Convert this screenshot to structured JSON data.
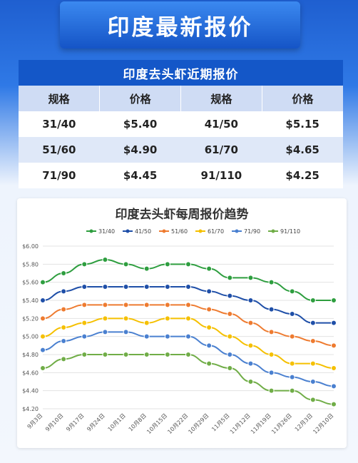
{
  "banner": {
    "title": "印度最新报价"
  },
  "table": {
    "title": "印度去头虾近期报价",
    "headers": [
      "规格",
      "价格",
      "规格",
      "价格"
    ],
    "rows": [
      [
        "31/40",
        "$5.40",
        "41/50",
        "$5.15"
      ],
      [
        "51/60",
        "$4.90",
        "61/70",
        "$4.65"
      ],
      [
        "71/90",
        "$4.45",
        "91/110",
        "$4.25"
      ]
    ]
  },
  "chart_data": {
    "type": "line",
    "title": "印度去头虾每周报价趋势",
    "xlabel": "",
    "ylabel": "",
    "ylim": [
      4.2,
      6.0
    ],
    "yticks": [
      "$4.20",
      "$4.40",
      "$4.60",
      "$4.80",
      "$5.00",
      "$5.20",
      "$5.40",
      "$5.60",
      "$5.80",
      "$6.00"
    ],
    "x": [
      "9月3日",
      "9月10日",
      "9月17日",
      "9月24日",
      "10月1日",
      "10月8日",
      "10月15日",
      "10月22日",
      "10月29日",
      "11月5日",
      "11月12日",
      "11月19日",
      "11月26日",
      "12月3日",
      "12月10日"
    ],
    "legend_position": "top",
    "grid": true,
    "series": [
      {
        "name": "31/40",
        "color": "#2e9e3f",
        "values": [
          5.6,
          5.7,
          5.8,
          5.85,
          5.8,
          5.75,
          5.8,
          5.8,
          5.75,
          5.65,
          5.65,
          5.6,
          5.5,
          5.4,
          5.4
        ]
      },
      {
        "name": "41/50",
        "color": "#1f4fa8",
        "values": [
          5.4,
          5.5,
          5.55,
          5.55,
          5.55,
          5.55,
          5.55,
          5.55,
          5.5,
          5.45,
          5.4,
          5.3,
          5.25,
          5.15,
          5.15
        ]
      },
      {
        "name": "51/60",
        "color": "#ee7b30",
        "values": [
          5.2,
          5.3,
          5.35,
          5.35,
          5.35,
          5.35,
          5.35,
          5.35,
          5.3,
          5.25,
          5.15,
          5.05,
          5.0,
          4.95,
          4.9
        ]
      },
      {
        "name": "61/70",
        "color": "#f5c000",
        "values": [
          5.0,
          5.1,
          5.15,
          5.2,
          5.2,
          5.15,
          5.2,
          5.2,
          5.1,
          5.0,
          4.9,
          4.8,
          4.7,
          4.7,
          4.65
        ]
      },
      {
        "name": "71/90",
        "color": "#4a80d0",
        "values": [
          4.85,
          4.95,
          5.0,
          5.05,
          5.05,
          5.0,
          5.0,
          5.0,
          4.9,
          4.8,
          4.7,
          4.6,
          4.55,
          4.5,
          4.45
        ]
      },
      {
        "name": "91/110",
        "color": "#70ad47",
        "values": [
          4.65,
          4.75,
          4.8,
          4.8,
          4.8,
          4.8,
          4.8,
          4.8,
          4.7,
          4.65,
          4.5,
          4.4,
          4.4,
          4.3,
          4.25
        ]
      }
    ]
  }
}
